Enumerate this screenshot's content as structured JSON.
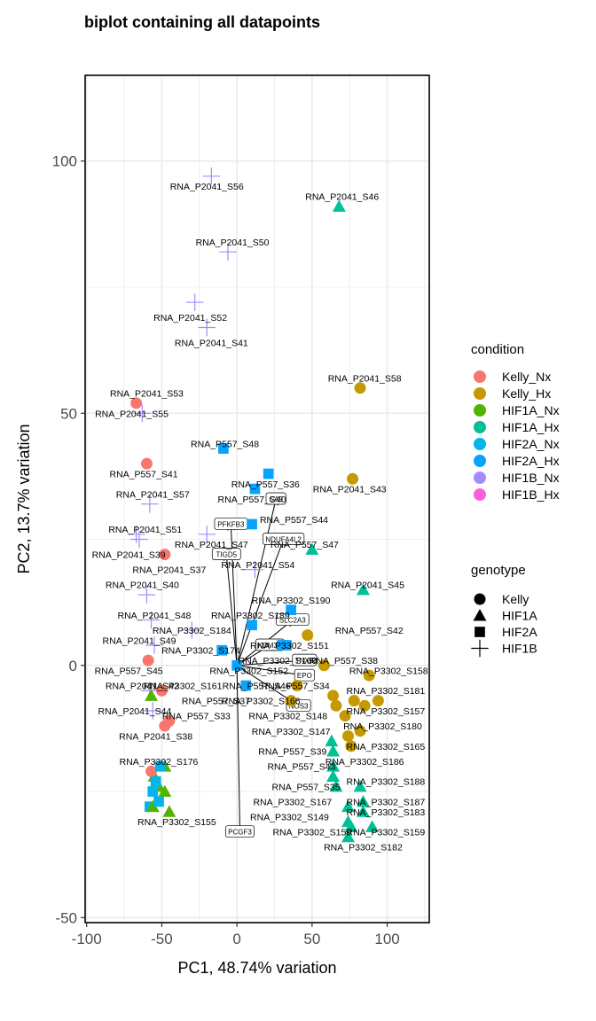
{
  "chart_data": {
    "type": "scatter",
    "title": "biplot containing all datapoints",
    "xlabel": "PC1, 48.74% variation",
    "ylabel": "PC2, 13.7% variation",
    "xlim": [
      -101,
      128
    ],
    "ylim": [
      -51,
      117
    ],
    "xticks": [
      -100,
      -50,
      0,
      50,
      100
    ],
    "yticks": [
      -50,
      0,
      50,
      100
    ],
    "grid": true,
    "legend_placement": "right",
    "legend_condition": {
      "title": "condition",
      "entries": [
        {
          "name": "Kelly_Nx",
          "color": "#F8766D"
        },
        {
          "name": "Kelly_Hx",
          "color": "#C49A00"
        },
        {
          "name": "HIF1A_Nx",
          "color": "#53B400"
        },
        {
          "name": "HIF1A_Hx",
          "color": "#00C094"
        },
        {
          "name": "HIF2A_Nx",
          "color": "#00B6EB"
        },
        {
          "name": "HIF2A_Hx",
          "color": "#06A4FF"
        },
        {
          "name": "HIF1B_Nx",
          "color": "#A58AFF"
        },
        {
          "name": "HIF1B_Hx",
          "color": "#FB61D7"
        }
      ]
    },
    "legend_genotype": {
      "title": "genotype",
      "entries": [
        {
          "name": "Kelly",
          "shape": "circle"
        },
        {
          "name": "HIF1A",
          "shape": "triangle"
        },
        {
          "name": "HIF2A",
          "shape": "square"
        },
        {
          "name": "HIF1B",
          "shape": "plus"
        }
      ]
    },
    "points": [
      {
        "label": "RNA_P2041_S56",
        "x": -17,
        "y": 97,
        "condition": "HIF1B_Nx",
        "genotype": "HIF1B",
        "lx": -20,
        "ly": 95
      },
      {
        "label": "RNA_P2041_S46",
        "x": 68,
        "y": 91,
        "condition": "HIF1A_Hx",
        "genotype": "HIF1A",
        "lx": 70,
        "ly": 93
      },
      {
        "label": "RNA_P2041_S50",
        "x": -6,
        "y": 82,
        "condition": "HIF1B_Nx",
        "genotype": "HIF1B",
        "lx": -3,
        "ly": 84
      },
      {
        "label": "RNA_P2041_S52",
        "x": -28,
        "y": 72,
        "condition": "HIF1B_Nx",
        "genotype": "HIF1B",
        "lx": -31,
        "ly": 69
      },
      {
        "label": "RNA_P2041_S41",
        "x": -20,
        "y": 67,
        "condition": "HIF1B_Nx",
        "genotype": "HIF1B",
        "lx": -17,
        "ly": 64
      },
      {
        "label": "RNA_P2041_S58",
        "x": 82,
        "y": 55,
        "condition": "Kelly_Hx",
        "genotype": "Kelly",
        "lx": 85,
        "ly": 57
      },
      {
        "label": "RNA_P2041_S53",
        "x": -67,
        "y": 52,
        "condition": "Kelly_Nx",
        "genotype": "Kelly",
        "lx": -60,
        "ly": 54
      },
      {
        "label": "RNA_P2041_S55",
        "x": -63,
        "y": 50,
        "condition": "HIF1B_Nx",
        "genotype": "HIF1B",
        "lx": -70,
        "ly": 50
      },
      {
        "label": "RNA_P557_S48",
        "x": -9,
        "y": 43,
        "condition": "HIF2A_Hx",
        "genotype": "HIF2A",
        "lx": -8,
        "ly": 44
      },
      {
        "label": "RNA_P557_S41",
        "x": -60,
        "y": 40,
        "condition": "Kelly_Nx",
        "genotype": "Kelly",
        "lx": -62,
        "ly": 38
      },
      {
        "label": "RNA_P557_S36",
        "x": 21,
        "y": 38,
        "condition": "HIF2A_Hx",
        "genotype": "HIF2A",
        "lx": 19,
        "ly": 36
      },
      {
        "label": "RNA_P2041_S43",
        "x": 77,
        "y": 37,
        "condition": "Kelly_Hx",
        "genotype": "Kelly",
        "lx": 75,
        "ly": 35
      },
      {
        "label": "RNA_P557_S40",
        "x": 12,
        "y": 35,
        "condition": "HIF2A_Hx",
        "genotype": "HIF2A",
        "lx": 10,
        "ly": 33
      },
      {
        "label": "RNA_P2041_S57",
        "x": -58,
        "y": 32,
        "condition": "HIF1B_Nx",
        "genotype": "HIF1B",
        "lx": -56,
        "ly": 34
      },
      {
        "label": "RNA_P557_S44",
        "x": 10,
        "y": 28,
        "condition": "HIF2A_Hx",
        "genotype": "HIF2A",
        "lx": 38,
        "ly": 29
      },
      {
        "label": "RNA_P2041_S51",
        "x": -67,
        "y": 26,
        "condition": "HIF1B_Nx",
        "genotype": "HIF1B",
        "lx": -61,
        "ly": 27
      },
      {
        "label": "RNA_P2041_S47",
        "x": -20,
        "y": 26,
        "condition": "HIF1B_Nx",
        "genotype": "HIF1B",
        "lx": -17,
        "ly": 24
      },
      {
        "label": "RNA_P557_S47",
        "x": 50,
        "y": 23,
        "condition": "HIF1A_Hx",
        "genotype": "HIF1A",
        "lx": 45,
        "ly": 24
      },
      {
        "label": "RNA_P2041_S39",
        "x": -65,
        "y": 25,
        "condition": "HIF1B_Nx",
        "genotype": "HIF1B",
        "lx": -72,
        "ly": 22
      },
      {
        "label": "RNA_P2041_S37",
        "x": -48,
        "y": 22,
        "condition": "Kelly_Nx",
        "genotype": "Kelly",
        "lx": -45,
        "ly": 19
      },
      {
        "label": "RNA_P2041_S54",
        "x": 12,
        "y": 19,
        "condition": "HIF1B_Nx",
        "genotype": "HIF1B",
        "lx": 14,
        "ly": 20
      },
      {
        "label": "RNA_P2041_S40",
        "x": -60,
        "y": 14,
        "condition": "HIF1B_Nx",
        "genotype": "HIF1B",
        "lx": -63,
        "ly": 16
      },
      {
        "label": "RNA_P2041_S45",
        "x": 84,
        "y": 15,
        "condition": "HIF1A_Hx",
        "genotype": "HIF1A",
        "lx": 87,
        "ly": 16
      },
      {
        "label": "RNA_P3302_S190",
        "x": 36,
        "y": 11,
        "condition": "HIF2A_Hx",
        "genotype": "HIF2A",
        "lx": 36,
        "ly": 13
      },
      {
        "label": "RNA_P2041_S48",
        "x": -57,
        "y": 9,
        "condition": "HIF1B_Nx",
        "genotype": "HIF1B",
        "lx": -55,
        "ly": 10
      },
      {
        "label": "RNA_P3302_S189",
        "x": 10,
        "y": 8,
        "condition": "HIF2A_Hx",
        "genotype": "HIF2A",
        "lx": 9,
        "ly": 10
      },
      {
        "label": "RNA_P3302_S184",
        "x": -30,
        "y": 7,
        "condition": "HIF1B_Nx",
        "genotype": "HIF1B",
        "lx": -30,
        "ly": 7
      },
      {
        "label": "RNA_P557_S42",
        "x": 47,
        "y": 6,
        "condition": "Kelly_Hx",
        "genotype": "Kelly",
        "lx": 88,
        "ly": 7
      },
      {
        "label": "RNA_P2041_S49",
        "x": -55,
        "y": 4,
        "condition": "HIF1B_Nx",
        "genotype": "HIF1B",
        "lx": -65,
        "ly": 5
      },
      {
        "label": "RNA_P3302_S174",
        "x": -10,
        "y": 3,
        "condition": "HIF2A_Hx",
        "genotype": "HIF2A",
        "lx": -24,
        "ly": 3
      },
      {
        "label": "RNA_P3302_S151",
        "x": 33,
        "y": 4,
        "condition": "HIF2A_Hx",
        "genotype": "HIF2A",
        "lx": 35,
        "ly": 4
      },
      {
        "label": "RNA_P3302_S160",
        "x": 30,
        "y": 4,
        "condition": "HIF2A_Hx",
        "genotype": "HIF2A",
        "lx": 27,
        "ly": 1
      },
      {
        "label": "RNA_P557_S38",
        "x": 58,
        "y": 0,
        "condition": "Kelly_Hx",
        "genotype": "Kelly",
        "lx": 71,
        "ly": 1
      },
      {
        "label": "RNA_P557_S45",
        "x": -59,
        "y": 1,
        "condition": "Kelly_Nx",
        "genotype": "Kelly",
        "lx": -72,
        "ly": -1
      },
      {
        "label": "RNA_P3302_S152",
        "x": 0,
        "y": 0,
        "condition": "HIF2A_Hx",
        "genotype": "HIF2A",
        "lx": 8,
        "ly": -1
      },
      {
        "label": "RNA_P3302_S158",
        "x": 88,
        "y": -2,
        "condition": "Kelly_Hx",
        "genotype": "Kelly",
        "lx": 101,
        "ly": -1
      },
      {
        "label": "RNA_P2041_S42",
        "x": -58,
        "y": -5,
        "condition": "HIF1B_Nx",
        "genotype": "HIF1B",
        "lx": -63,
        "ly": -4
      },
      {
        "label": "RNA_P3302_S161",
        "x": -50,
        "y": -5,
        "condition": "Kelly_Nx",
        "genotype": "Kelly",
        "lx": -36,
        "ly": -4
      },
      {
        "label": "RNA_P557_S46",
        "x": 6,
        "y": -4,
        "condition": "HIF2A_Hx",
        "genotype": "HIF2A",
        "lx": 13,
        "ly": -4
      },
      {
        "label": "RNA_P557_S34",
        "x": 40,
        "y": -4,
        "condition": "Kelly_Hx",
        "genotype": "Kelly",
        "lx": 39,
        "ly": -4
      },
      {
        "label": "RNA_P3302_S181",
        "x": 64,
        "y": -6,
        "condition": "Kelly_Hx",
        "genotype": "Kelly",
        "lx": 99,
        "ly": -5
      },
      {
        "label": "RNA_P557_S37",
        "x": -57,
        "y": -6,
        "condition": "HIF1A_Nx",
        "genotype": "HIF1A",
        "lx": -14,
        "ly": -7
      },
      {
        "label": "RNA_P3302_S166",
        "x": 36,
        "y": -7,
        "condition": "Kelly_Hx",
        "genotype": "Kelly",
        "lx": 16,
        "ly": -7
      },
      {
        "label": "RNA_P3302_S157",
        "x": 94,
        "y": -7,
        "condition": "Kelly_Hx",
        "genotype": "Kelly",
        "lx": 99,
        "ly": -9
      },
      {
        "label": "RNA_P2041_S44",
        "x": -56,
        "y": -9,
        "condition": "HIF1B_Nx",
        "genotype": "HIF1B",
        "lx": -68,
        "ly": -9
      },
      {
        "label": "RNA_P557_S33",
        "x": -45,
        "y": -11,
        "condition": "Kelly_Nx",
        "genotype": "Kelly",
        "lx": -27,
        "ly": -10
      },
      {
        "label": "RNA_P3302_S148",
        "x": 66,
        "y": -8,
        "condition": "Kelly_Hx",
        "genotype": "Kelly",
        "lx": 34,
        "ly": -10
      },
      {
        "label": "RNA_P3302_S180",
        "x": 82,
        "y": -13,
        "condition": "Kelly_Hx",
        "genotype": "Kelly",
        "lx": 97,
        "ly": -12
      },
      {
        "label": "RNA_P2041_S38",
        "x": -48,
        "y": -12,
        "condition": "Kelly_Nx",
        "genotype": "Kelly",
        "lx": -54,
        "ly": -14
      },
      {
        "label": "RNA_P3302_S147",
        "x": 63,
        "y": -15,
        "condition": "HIF1A_Hx",
        "genotype": "HIF1A",
        "lx": 36,
        "ly": -13
      },
      {
        "label": "RNA_P3302_S165",
        "x": 76,
        "y": -16,
        "condition": "Kelly_Hx",
        "genotype": "Kelly",
        "lx": 99,
        "ly": -16
      },
      {
        "label": "RNA_P557_S39",
        "x": 64,
        "y": -17,
        "condition": "HIF1A_Hx",
        "genotype": "HIF1A",
        "lx": 37,
        "ly": -17
      },
      {
        "label": "RNA_P3302_S176",
        "x": -48,
        "y": -20,
        "condition": "HIF1A_Nx",
        "genotype": "HIF1A",
        "lx": -52,
        "ly": -19
      },
      {
        "label": "RNA_P3302_S186",
        "x": 64,
        "y": -20,
        "condition": "HIF1A_Hx",
        "genotype": "HIF1A",
        "lx": 85,
        "ly": -19
      },
      {
        "label": "RNA_P557_S43",
        "x": 64,
        "y": -22,
        "condition": "HIF1A_Hx",
        "genotype": "HIF1A",
        "lx": 43,
        "ly": -20
      },
      {
        "label": "RNA_P3302_S188",
        "x": 82,
        "y": -24,
        "condition": "HIF1A_Hx",
        "genotype": "HIF1A",
        "lx": 99,
        "ly": -23
      },
      {
        "label": "RNA_P557_S35",
        "x": 66,
        "y": -24,
        "condition": "HIF1A_Hx",
        "genotype": "HIF1A",
        "lx": 46,
        "ly": -24
      },
      {
        "label": "RNA_P3302_S187",
        "x": 84,
        "y": -27,
        "condition": "HIF1A_Hx",
        "genotype": "HIF1A",
        "lx": 99,
        "ly": -27
      },
      {
        "label": "RNA_P3302_S167",
        "x": 74,
        "y": -28,
        "condition": "HIF1A_Hx",
        "genotype": "HIF1A",
        "lx": 37,
        "ly": -27
      },
      {
        "label": "RNA_P3302_S183",
        "x": 84,
        "y": -29,
        "condition": "HIF1A_Hx",
        "genotype": "HIF1A",
        "lx": 99,
        "ly": -29
      },
      {
        "label": "RNA_P3302_S149",
        "x": 74,
        "y": -31,
        "condition": "HIF1A_Hx",
        "genotype": "HIF1A",
        "lx": 35,
        "ly": -30
      },
      {
        "label": "RNA_P3302_S155",
        "x": -58,
        "y": -28,
        "condition": "HIF2A_Nx",
        "genotype": "HIF2A",
        "lx": -40,
        "ly": -31
      },
      {
        "label": "RNA_P3302_S159",
        "x": 90,
        "y": -32,
        "condition": "HIF1A_Hx",
        "genotype": "HIF1A",
        "lx": 99,
        "ly": -33
      },
      {
        "label": "RNA_P3302_S150",
        "x": 76,
        "y": -32,
        "condition": "HIF1A_Hx",
        "genotype": "HIF1A",
        "lx": 50,
        "ly": -33
      },
      {
        "label": "RNA_P3302_S182",
        "x": 74,
        "y": -34,
        "condition": "HIF1A_Hx",
        "genotype": "HIF1A",
        "lx": 84,
        "ly": -36
      },
      {
        "label": "",
        "x": -55,
        "y": -22,
        "condition": "HIF1A_Nx",
        "genotype": "HIF1A"
      },
      {
        "label": "",
        "x": -52,
        "y": -24,
        "condition": "HIF1A_Nx",
        "genotype": "HIF1A"
      },
      {
        "label": "",
        "x": -48,
        "y": -25,
        "condition": "HIF1A_Nx",
        "genotype": "HIF1A"
      },
      {
        "label": "",
        "x": -45,
        "y": -29,
        "condition": "HIF1A_Nx",
        "genotype": "HIF1A"
      },
      {
        "label": "",
        "x": -56,
        "y": -28,
        "condition": "HIF1A_Nx",
        "genotype": "HIF1A"
      },
      {
        "label": "",
        "x": -57,
        "y": -21,
        "condition": "Kelly_Nx",
        "genotype": "Kelly"
      },
      {
        "label": "",
        "x": -54,
        "y": -23,
        "condition": "HIF2A_Nx",
        "genotype": "HIF2A"
      },
      {
        "label": "",
        "x": -51,
        "y": -20,
        "condition": "HIF2A_Nx",
        "genotype": "HIF2A"
      },
      {
        "label": "",
        "x": -56,
        "y": -25,
        "condition": "HIF2A_Nx",
        "genotype": "HIF2A"
      },
      {
        "label": "",
        "x": -52,
        "y": -27,
        "condition": "HIF2A_Nx",
        "genotype": "HIF2A"
      },
      {
        "label": "",
        "x": 72,
        "y": -10,
        "condition": "Kelly_Hx",
        "genotype": "Kelly"
      },
      {
        "label": "",
        "x": 78,
        "y": -7,
        "condition": "Kelly_Hx",
        "genotype": "Kelly"
      },
      {
        "label": "",
        "x": 85,
        "y": -8,
        "condition": "Kelly_Hx",
        "genotype": "Kelly"
      },
      {
        "label": "",
        "x": 74,
        "y": -14,
        "condition": "Kelly_Hx",
        "genotype": "Kelly"
      }
    ],
    "loadings": [
      {
        "label": "CA9",
        "x": 26,
        "y": 33
      },
      {
        "label": "PFKFB3",
        "x": -4,
        "y": 28
      },
      {
        "label": "TIGD5",
        "x": -7,
        "y": 22
      },
      {
        "label": "NDUFA4L2",
        "x": 31,
        "y": 25
      },
      {
        "label": "SLC2A3",
        "x": 37,
        "y": 9
      },
      {
        "label": "KDM3A",
        "x": 22,
        "y": 4
      },
      {
        "label": "TNXB",
        "x": 45,
        "y": 1
      },
      {
        "label": "EPO",
        "x": 45,
        "y": -2
      },
      {
        "label": "NOS3",
        "x": 41,
        "y": -8
      },
      {
        "label": "PCGF3",
        "x": 2,
        "y": -33
      }
    ]
  }
}
